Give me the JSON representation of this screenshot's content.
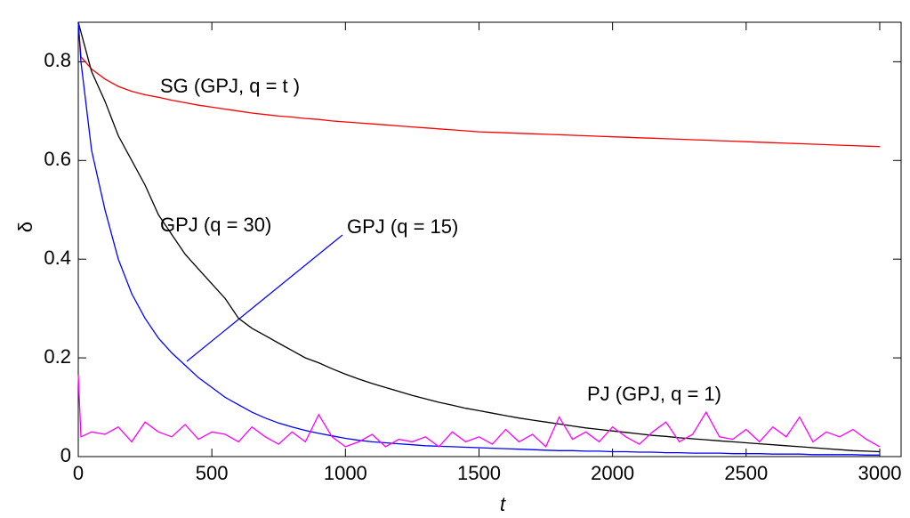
{
  "chart_data": {
    "type": "line",
    "xlabel": "t",
    "ylabel": "δ",
    "x": [
      0,
      10,
      50,
      100,
      150,
      200,
      250,
      300,
      350,
      400,
      450,
      500,
      550,
      600,
      650,
      700,
      750,
      800,
      850,
      900,
      950,
      1000,
      1050,
      1100,
      1150,
      1200,
      1250,
      1300,
      1350,
      1400,
      1450,
      1500,
      1550,
      1600,
      1650,
      1700,
      1750,
      1800,
      1850,
      1900,
      1950,
      2000,
      2050,
      2100,
      2150,
      2200,
      2250,
      2300,
      2350,
      2400,
      2450,
      2500,
      2550,
      2600,
      2650,
      2700,
      2750,
      2800,
      2850,
      2900,
      2950,
      3000
    ],
    "series": [
      {
        "name": "SG (GPJ, q = t )",
        "color": "#ff0000",
        "values": [
          0.88,
          0.81,
          0.785,
          0.765,
          0.75,
          0.74,
          0.733,
          0.728,
          0.722,
          0.717,
          0.712,
          0.708,
          0.704,
          0.7,
          0.696,
          0.693,
          0.69,
          0.688,
          0.685,
          0.683,
          0.68,
          0.678,
          0.676,
          0.674,
          0.672,
          0.67,
          0.668,
          0.666,
          0.664,
          0.662,
          0.66,
          0.658,
          0.657,
          0.656,
          0.655,
          0.654,
          0.653,
          0.652,
          0.651,
          0.65,
          0.649,
          0.648,
          0.647,
          0.646,
          0.645,
          0.644,
          0.643,
          0.642,
          0.641,
          0.64,
          0.639,
          0.638,
          0.637,
          0.636,
          0.635,
          0.634,
          0.633,
          0.632,
          0.631,
          0.63,
          0.629,
          0.628
        ]
      },
      {
        "name": "GPJ (q = 30)",
        "color": "#000000",
        "values": [
          0.88,
          0.86,
          0.78,
          0.72,
          0.65,
          0.6,
          0.55,
          0.49,
          0.45,
          0.41,
          0.38,
          0.35,
          0.32,
          0.28,
          0.26,
          0.245,
          0.23,
          0.215,
          0.2,
          0.19,
          0.178,
          0.167,
          0.157,
          0.148,
          0.14,
          0.132,
          0.124,
          0.117,
          0.11,
          0.104,
          0.098,
          0.093,
          0.088,
          0.083,
          0.078,
          0.074,
          0.07,
          0.066,
          0.062,
          0.058,
          0.055,
          0.052,
          0.049,
          0.046,
          0.043,
          0.041,
          0.038,
          0.036,
          0.034,
          0.032,
          0.03,
          0.028,
          0.026,
          0.024,
          0.022,
          0.02,
          0.018,
          0.016,
          0.014,
          0.012,
          0.011,
          0.01
        ]
      },
      {
        "name": "GPJ (q = 15)",
        "color": "#0000ff",
        "values": [
          0.88,
          0.8,
          0.62,
          0.5,
          0.4,
          0.33,
          0.28,
          0.24,
          0.21,
          0.185,
          0.16,
          0.14,
          0.12,
          0.105,
          0.09,
          0.078,
          0.068,
          0.06,
          0.053,
          0.047,
          0.042,
          0.037,
          0.033,
          0.03,
          0.028,
          0.026,
          0.024,
          0.022,
          0.021,
          0.02,
          0.019,
          0.018,
          0.017,
          0.016,
          0.015,
          0.014,
          0.013,
          0.012,
          0.012,
          0.011,
          0.011,
          0.01,
          0.01,
          0.009,
          0.009,
          0.008,
          0.008,
          0.007,
          0.007,
          0.007,
          0.006,
          0.006,
          0.006,
          0.005,
          0.005,
          0.005,
          0.004,
          0.004,
          0.004,
          0.004,
          0.003,
          0.003
        ]
      },
      {
        "name": "PJ (GPJ, q = 1)",
        "color": "#ff00ff",
        "values": [
          0.165,
          0.04,
          0.05,
          0.045,
          0.06,
          0.03,
          0.07,
          0.05,
          0.04,
          0.065,
          0.035,
          0.05,
          0.045,
          0.03,
          0.06,
          0.04,
          0.025,
          0.05,
          0.03,
          0.085,
          0.04,
          0.02,
          0.03,
          0.045,
          0.02,
          0.035,
          0.03,
          0.04,
          0.02,
          0.05,
          0.03,
          0.04,
          0.025,
          0.055,
          0.03,
          0.045,
          0.02,
          0.08,
          0.035,
          0.05,
          0.03,
          0.06,
          0.04,
          0.025,
          0.05,
          0.07,
          0.03,
          0.045,
          0.09,
          0.04,
          0.035,
          0.055,
          0.03,
          0.06,
          0.04,
          0.08,
          0.03,
          0.05,
          0.04,
          0.055,
          0.035,
          0.02
        ]
      }
    ],
    "xlim": [
      0,
      3080
    ],
    "ylim": [
      0,
      0.88
    ],
    "xticks": [
      0,
      500,
      1000,
      1500,
      2000,
      2500,
      3000
    ],
    "yticks": [
      0,
      0.2,
      0.4,
      0.6,
      0.8
    ]
  }
}
